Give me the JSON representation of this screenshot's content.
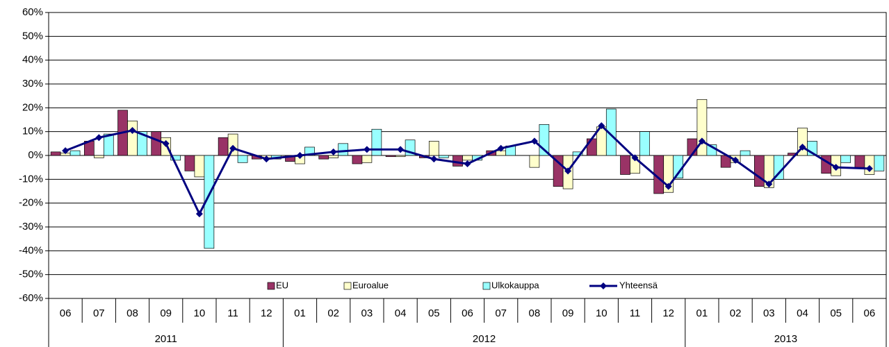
{
  "chart_data": {
    "type": "bar",
    "categories": [
      "06",
      "07",
      "08",
      "09",
      "10",
      "11",
      "12",
      "01",
      "02",
      "03",
      "04",
      "05",
      "06",
      "07",
      "08",
      "09",
      "10",
      "11",
      "12",
      "01",
      "02",
      "03",
      "04",
      "05",
      "06"
    ],
    "category_years": [
      "2011",
      "2011",
      "2011",
      "2011",
      "2011",
      "2011",
      "2011",
      "2012",
      "2012",
      "2012",
      "2012",
      "2012",
      "2012",
      "2012",
      "2012",
      "2012",
      "2012",
      "2012",
      "2012",
      "2013",
      "2013",
      "2013",
      "2013",
      "2013",
      "2013"
    ],
    "series": [
      {
        "name": "EU",
        "type": "bar",
        "color": "#993366",
        "values": [
          1.5,
          6,
          19,
          10,
          -6.5,
          7.5,
          -1.5,
          -2.5,
          -1.5,
          -3.5,
          -0.5,
          -1,
          -4.5,
          2,
          0,
          -13,
          7,
          -8,
          -16,
          7,
          -5,
          -13,
          1,
          -7.5,
          -5
        ]
      },
      {
        "name": "Euroalue",
        "type": "bar",
        "color": "#FFFFCC",
        "values": [
          1,
          -1,
          14.5,
          7.5,
          -9,
          9,
          -1,
          -3.5,
          -1,
          -3,
          -0.5,
          6,
          -2,
          2,
          -5,
          -14,
          12,
          -7.5,
          -15.5,
          23.5,
          -3,
          -13.5,
          11.5,
          -8.5,
          -8
        ]
      },
      {
        "name": "Ulkokauppa",
        "type": "bar",
        "color": "#99FFFF",
        "values": [
          2,
          9,
          10,
          -2,
          -39,
          -3,
          -1.5,
          3.5,
          5,
          11,
          6.5,
          -1,
          -2,
          4,
          13,
          1.5,
          19.5,
          10,
          -9.5,
          4.5,
          2,
          -10,
          6,
          -3,
          -6.5
        ]
      },
      {
        "name": "Yhteensä",
        "type": "line",
        "color": "#000080",
        "values": [
          2,
          7.5,
          10.5,
          5,
          -24.5,
          3,
          -1.5,
          0,
          1.5,
          2.5,
          2.5,
          -1.5,
          -3.5,
          3,
          6,
          -6.5,
          12.5,
          -1,
          -13,
          6,
          -2,
          -12,
          3.5,
          -5,
          -5.5
        ]
      }
    ],
    "ylim": [
      -60,
      60
    ],
    "yticks": [
      {
        "value": -60,
        "label": "-60%"
      },
      {
        "value": -50,
        "label": "-50%"
      },
      {
        "value": -40,
        "label": "-40%"
      },
      {
        "value": -30,
        "label": "-30%"
      },
      {
        "value": -20,
        "label": "-20%"
      },
      {
        "value": -10,
        "label": "-10%"
      },
      {
        "value": 0,
        "label": "0%"
      },
      {
        "value": 10,
        "label": "10%"
      },
      {
        "value": 20,
        "label": "20%"
      },
      {
        "value": 30,
        "label": "30%"
      },
      {
        "value": 40,
        "label": "40%"
      },
      {
        "value": 50,
        "label": "50%"
      },
      {
        "value": 60,
        "label": "60%"
      }
    ],
    "grid": true
  }
}
